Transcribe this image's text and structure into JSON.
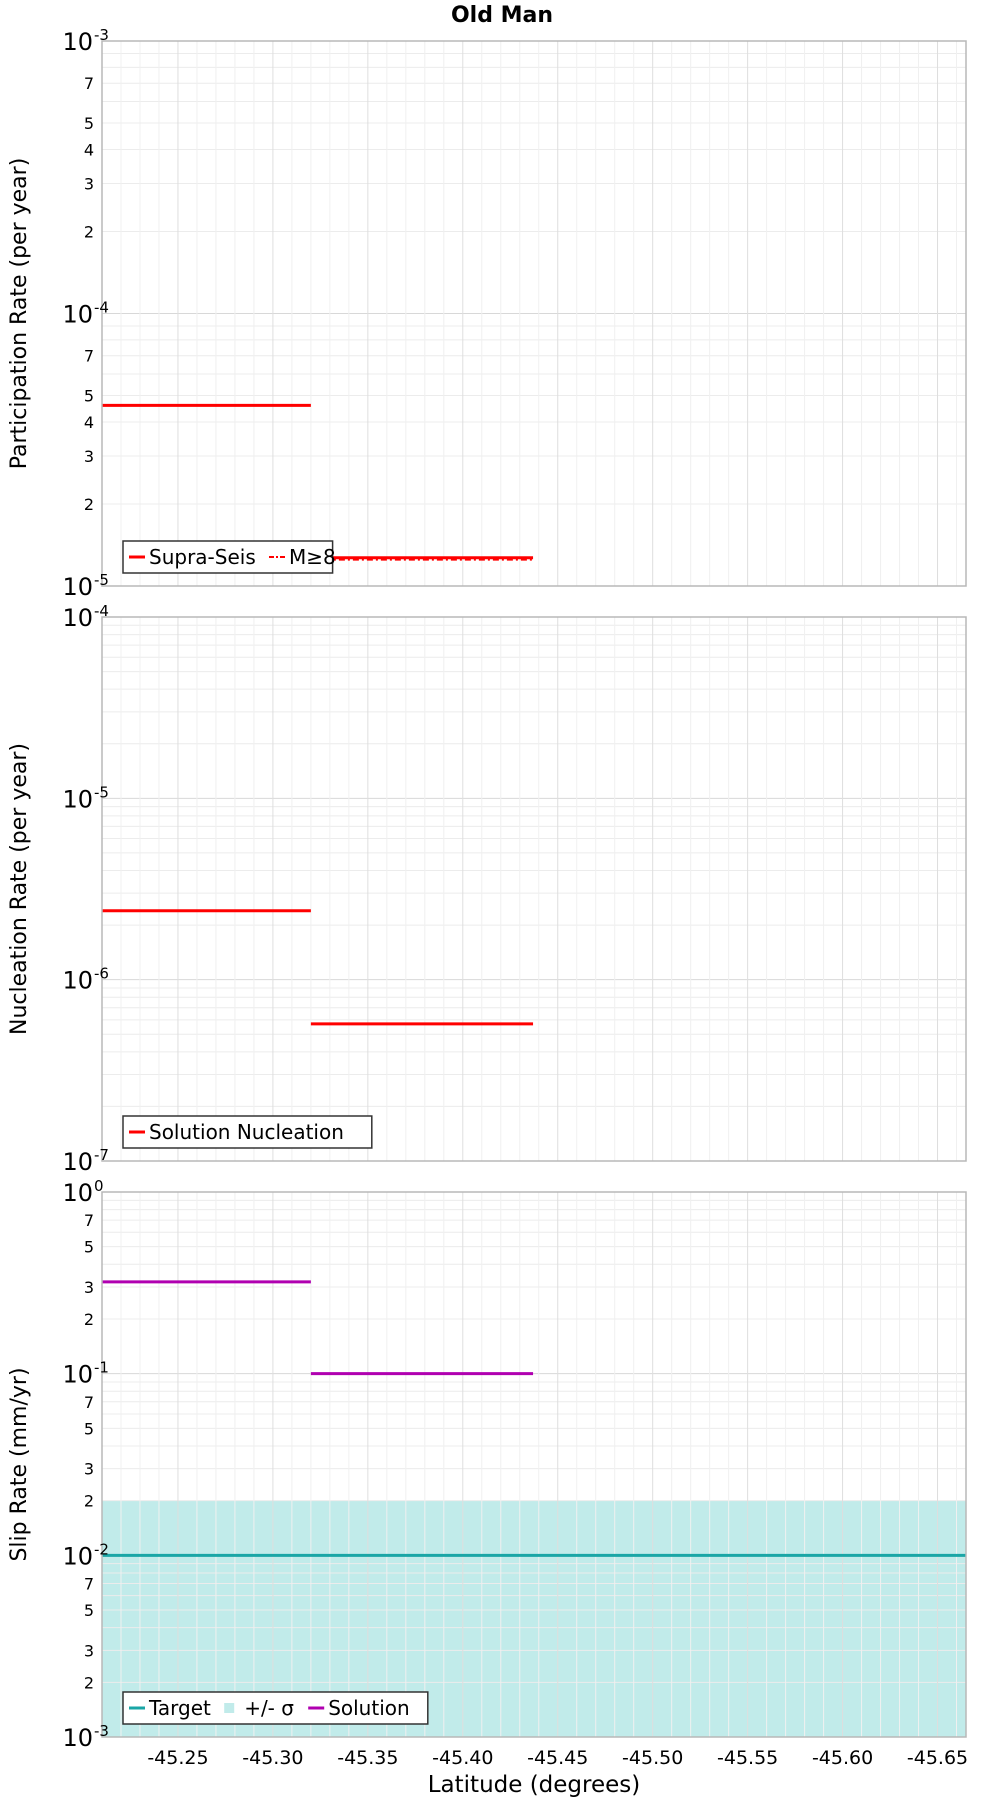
{
  "chart_data": {
    "title": "Old Man",
    "xlabel": "Latitude (degrees)",
    "x_ticks": [
      "-45.25",
      "-45.30",
      "-45.35",
      "-45.40",
      "-45.45",
      "-45.50",
      "-45.55",
      "-45.60",
      "-45.65"
    ],
    "x_tick_values": [
      -45.25,
      -45.3,
      -45.35,
      -45.4,
      -45.45,
      -45.5,
      -45.55,
      -45.6,
      -45.65
    ],
    "xlim": [
      -45.21,
      -45.665
    ],
    "panels": [
      {
        "type": "line",
        "scale": "log",
        "ylabel": "Participation Rate (per year)",
        "ylim": [
          1e-05,
          0.001
        ],
        "decade_labels": [
          {
            "value": 1e-05,
            "base": "10",
            "exp": "-5"
          },
          {
            "value": 0.0001,
            "base": "10",
            "exp": "-4"
          },
          {
            "value": 0.001,
            "base": "10",
            "exp": "-3"
          }
        ],
        "minor_labels": [
          {
            "value": 2e-05,
            "label": "2"
          },
          {
            "value": 3e-05,
            "label": "3"
          },
          {
            "value": 4e-05,
            "label": "4"
          },
          {
            "value": 5e-05,
            "label": "5"
          },
          {
            "value": 7e-05,
            "label": "7"
          },
          {
            "value": 0.0002,
            "label": "2"
          },
          {
            "value": 0.0003,
            "label": "3"
          },
          {
            "value": 0.0004,
            "label": "4"
          },
          {
            "value": 0.0005,
            "label": "5"
          },
          {
            "value": 0.0007,
            "label": "7"
          }
        ],
        "series": [
          {
            "name": "Supra-Seis",
            "color": "#ff0000",
            "style": "solid",
            "segments": [
              {
                "x0": -45.21,
                "x1": -45.32,
                "y": 4.6e-05
              },
              {
                "x0": -45.32,
                "x1": -45.437,
                "y": 1.27e-05
              }
            ]
          },
          {
            "name": "M≥8",
            "color": "#ff0000",
            "style": "dashdot",
            "segments": [
              {
                "x0": -45.32,
                "x1": -45.437,
                "y": 1.25e-05
              }
            ]
          }
        ],
        "legend": [
          "Supra-Seis",
          "M≥8"
        ]
      },
      {
        "type": "line",
        "scale": "log",
        "ylabel": "Nucleation Rate (per year)",
        "ylim": [
          1e-07,
          0.0001
        ],
        "decade_labels": [
          {
            "value": 1e-07,
            "base": "10",
            "exp": "-7"
          },
          {
            "value": 1e-06,
            "base": "10",
            "exp": "-6"
          },
          {
            "value": 1e-05,
            "base": "10",
            "exp": "-5"
          },
          {
            "value": 0.0001,
            "base": "10",
            "exp": "-4"
          }
        ],
        "minor_labels": [],
        "series": [
          {
            "name": "Solution Nucleation",
            "color": "#ff0000",
            "style": "solid",
            "segments": [
              {
                "x0": -45.21,
                "x1": -45.32,
                "y": 2.4e-06
              },
              {
                "x0": -45.32,
                "x1": -45.437,
                "y": 5.7e-07
              }
            ]
          }
        ],
        "legend": [
          "Solution Nucleation"
        ]
      },
      {
        "type": "line",
        "scale": "log",
        "ylabel": "Slip Rate (mm/yr)",
        "ylim": [
          0.001,
          1
        ],
        "decade_labels": [
          {
            "value": 0.001,
            "base": "10",
            "exp": "-3"
          },
          {
            "value": 0.01,
            "base": "10",
            "exp": "-2"
          },
          {
            "value": 0.1,
            "base": "10",
            "exp": "-1"
          },
          {
            "value": 1,
            "base": "10",
            "exp": "0"
          }
        ],
        "minor_labels": [
          {
            "value": 0.002,
            "label": "2"
          },
          {
            "value": 0.003,
            "label": "3"
          },
          {
            "value": 0.005,
            "label": "5"
          },
          {
            "value": 0.007,
            "label": "7"
          },
          {
            "value": 0.02,
            "label": "2"
          },
          {
            "value": 0.03,
            "label": "3"
          },
          {
            "value": 0.05,
            "label": "5"
          },
          {
            "value": 0.07,
            "label": "7"
          },
          {
            "value": 0.2,
            "label": "2"
          },
          {
            "value": 0.3,
            "label": "3"
          },
          {
            "value": 0.5,
            "label": "5"
          },
          {
            "value": 0.7,
            "label": "7"
          }
        ],
        "band": {
          "name": "+/- σ",
          "color": "#c1ebea",
          "y0": 0.001,
          "y1": 0.02
        },
        "series": [
          {
            "name": "Target",
            "color": "#1aa6a6",
            "style": "solid",
            "segments": [
              {
                "x0": -45.21,
                "x1": -45.665,
                "y": 0.01
              }
            ]
          },
          {
            "name": "Solution",
            "color": "#b000b0",
            "style": "solid",
            "segments": [
              {
                "x0": -45.21,
                "x1": -45.32,
                "y": 0.32
              },
              {
                "x0": -45.32,
                "x1": -45.437,
                "y": 0.1
              }
            ]
          }
        ],
        "legend": [
          "Target",
          "+/- σ",
          "Solution"
        ]
      }
    ]
  }
}
